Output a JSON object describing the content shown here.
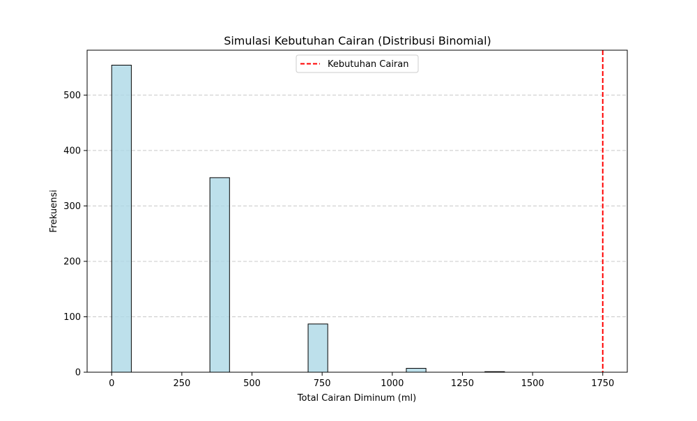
{
  "chart_data": {
    "type": "bar",
    "title": "Simulasi Kebutuhan Cairan (Distribusi Binomial)",
    "xlabel": "Total Cairan Diminum (ml)",
    "ylabel": "Frekuensi",
    "xlim": [
      -87.5,
      1837.5
    ],
    "ylim": [
      0,
      581
    ],
    "x_ticks": [
      0,
      250,
      500,
      750,
      1000,
      1250,
      1500,
      1750
    ],
    "x_tick_labels": [
      "0",
      "250",
      "500",
      "750",
      "1000",
      "1250",
      "1500",
      "1750"
    ],
    "y_ticks": [
      0,
      100,
      200,
      300,
      400,
      500
    ],
    "y_tick_labels": [
      "0",
      "100",
      "200",
      "300",
      "400",
      "500"
    ],
    "bins": [
      {
        "x0": 0,
        "x1": 70,
        "count": 554
      },
      {
        "x0": 70,
        "x1": 140,
        "count": 0
      },
      {
        "x0": 140,
        "x1": 210,
        "count": 0
      },
      {
        "x0": 210,
        "x1": 280,
        "count": 0
      },
      {
        "x0": 280,
        "x1": 350,
        "count": 0
      },
      {
        "x0": 350,
        "x1": 420,
        "count": 351
      },
      {
        "x0": 420,
        "x1": 490,
        "count": 0
      },
      {
        "x0": 490,
        "x1": 560,
        "count": 0
      },
      {
        "x0": 560,
        "x1": 630,
        "count": 0
      },
      {
        "x0": 630,
        "x1": 700,
        "count": 0
      },
      {
        "x0": 700,
        "x1": 770,
        "count": 87
      },
      {
        "x0": 770,
        "x1": 840,
        "count": 0
      },
      {
        "x0": 840,
        "x1": 910,
        "count": 0
      },
      {
        "x0": 910,
        "x1": 980,
        "count": 0
      },
      {
        "x0": 980,
        "x1": 1050,
        "count": 0
      },
      {
        "x0": 1050,
        "x1": 1120,
        "count": 7
      },
      {
        "x0": 1120,
        "x1": 1190,
        "count": 0
      },
      {
        "x0": 1190,
        "x1": 1260,
        "count": 0
      },
      {
        "x0": 1260,
        "x1": 1330,
        "count": 0
      },
      {
        "x0": 1330,
        "x1": 1400,
        "count": 1
      }
    ],
    "reference_line": {
      "x": 1750,
      "label": "Kebutuhan Cairan",
      "color": "#ff0000",
      "style": "dashed"
    },
    "bar_color": "#add8e6",
    "bar_edge_color": "#000000",
    "grid": {
      "y": true,
      "x": false,
      "style": "dashed"
    },
    "legend": {
      "position": "top-center",
      "entries": [
        "Kebutuhan Cairan"
      ]
    }
  }
}
